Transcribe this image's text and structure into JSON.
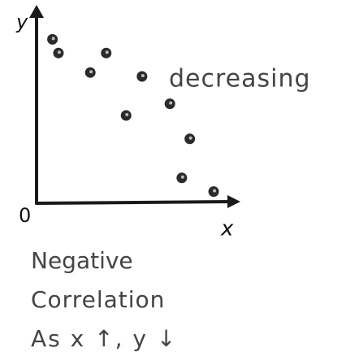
{
  "chart_data": {
    "type": "scatter",
    "xlabel": "x",
    "ylabel": "y",
    "x": [
      0.8,
      1.1,
      2.7,
      3.5,
      5.3,
      6.7,
      4.5,
      7.7,
      7.3,
      8.9
    ],
    "values": [
      8.4,
      7.7,
      6.7,
      7.7,
      6.5,
      5.1,
      4.5,
      3.3,
      1.3,
      0.6
    ],
    "color": "#2b2b2b",
    "xlim": [
      0,
      10
    ],
    "ylim": [
      0,
      10
    ],
    "xticks": [
      0
    ],
    "annotations": [
      "decreasing",
      "Negative",
      "Correlation",
      "As x ↑, y ↓"
    ]
  }
}
